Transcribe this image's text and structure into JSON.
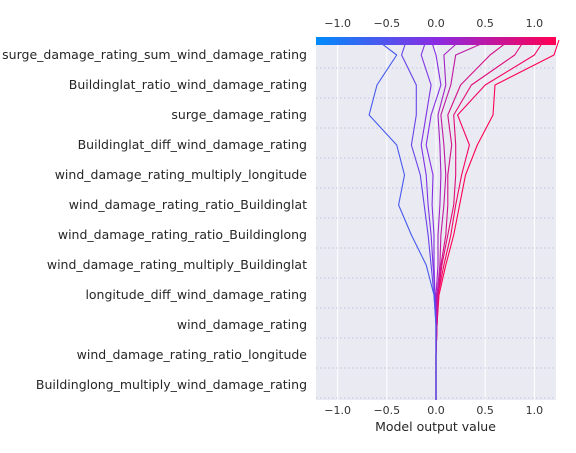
{
  "chart_data": {
    "type": "line",
    "title": "",
    "xlabel": "Model output value",
    "ylabel": "",
    "xlim": [
      -1.22,
      1.22
    ],
    "x_ticks": [
      {
        "value": -1.0,
        "label": "−1.0"
      },
      {
        "value": -0.5,
        "label": "−0.5"
      },
      {
        "value": 0.0,
        "label": "0.0"
      },
      {
        "value": 0.5,
        "label": "0.5"
      },
      {
        "value": 1.0,
        "label": "1.0"
      }
    ],
    "grid": true,
    "colorbar": {
      "low": "#008bfb",
      "mid": "#8a2be2",
      "high": "#ff0052"
    },
    "features": [
      "surge_damage_rating_sum_wind_damage_rating",
      "Buildinglat_ratio_wind_damage_rating",
      "surge_damage_rating",
      "Buildinglat_diff_wind_damage_rating",
      "wind_damage_rating_multiply_longitude",
      "wind_damage_rating_ratio_Buildinglat",
      "wind_damage_rating_ratio_Buildinglong",
      "wind_damage_rating_multiply_Buildinglat",
      "longitude_diff_wind_damage_rating",
      "wind_damage_rating",
      "wind_damage_rating_ratio_longitude",
      "Buildinglong_multiply_wind_damage_rating"
    ],
    "base_value": 0.0,
    "series": [
      {
        "values": [
          0.0,
          0.0,
          0.0,
          0.01,
          0.03,
          0.1,
          0.18,
          0.24,
          0.3,
          0.42,
          0.58,
          0.6,
          1.2,
          1.25
        ]
      },
      {
        "values": [
          0.0,
          0.0,
          0.0,
          0.01,
          0.02,
          0.08,
          0.15,
          0.2,
          0.26,
          0.34,
          0.22,
          0.5,
          1.0,
          1.1
        ]
      },
      {
        "values": [
          0.0,
          0.0,
          0.0,
          0.01,
          0.02,
          0.06,
          0.12,
          0.18,
          0.2,
          0.2,
          0.18,
          0.36,
          0.8,
          0.9
        ]
      },
      {
        "values": [
          0.0,
          0.0,
          0.0,
          0.01,
          0.02,
          0.05,
          0.1,
          0.12,
          0.12,
          0.16,
          0.12,
          0.25,
          0.55,
          0.75
        ]
      },
      {
        "values": [
          0.0,
          0.0,
          0.0,
          0.0,
          0.01,
          0.04,
          0.05,
          0.08,
          0.1,
          0.08,
          0.05,
          0.15,
          0.2,
          0.55
        ]
      },
      {
        "values": [
          0.0,
          0.0,
          0.0,
          0.0,
          0.0,
          0.02,
          0.02,
          0.04,
          0.05,
          0.04,
          0.02,
          0.1,
          0.08,
          0.25
        ]
      },
      {
        "values": [
          0.0,
          0.0,
          0.0,
          0.0,
          -0.01,
          -0.02,
          -0.02,
          -0.04,
          -0.03,
          -0.1,
          -0.05,
          0.05,
          0.0,
          -0.05
        ]
      },
      {
        "values": [
          0.0,
          0.0,
          0.0,
          0.0,
          -0.01,
          -0.03,
          -0.05,
          -0.08,
          -0.1,
          -0.15,
          -0.1,
          -0.05,
          -0.15,
          -0.1
        ]
      },
      {
        "values": [
          0.0,
          0.0,
          0.0,
          0.0,
          -0.02,
          -0.05,
          -0.08,
          -0.12,
          -0.16,
          -0.25,
          -0.2,
          -0.2,
          -0.35,
          -0.3
        ]
      },
      {
        "values": [
          0.0,
          0.0,
          0.0,
          0.0,
          -0.02,
          -0.1,
          -0.25,
          -0.38,
          -0.32,
          -0.4,
          -0.68,
          -0.6,
          -0.4,
          -0.6
        ]
      }
    ]
  }
}
